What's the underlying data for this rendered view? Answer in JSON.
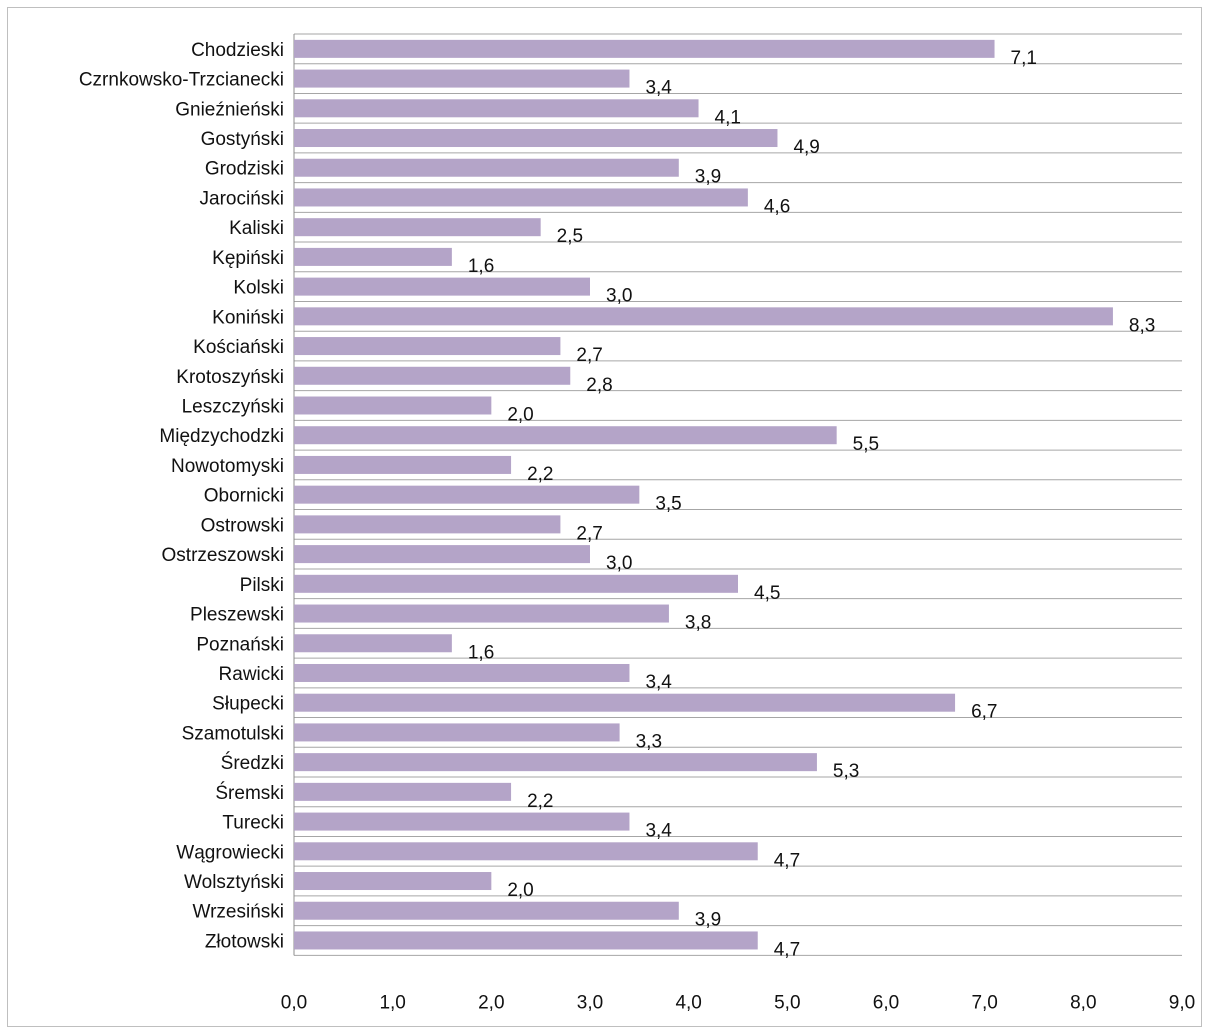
{
  "chart_data": {
    "type": "bar",
    "orientation": "horizontal",
    "categories": [
      "Chodzieski",
      "Czrnkowsko-Trzcianecki",
      "Gnieźnieński",
      "Gostyński",
      "Grodziski",
      "Jarociński",
      "Kaliski",
      "Kępiński",
      "Kolski",
      "Koniński",
      "Kościański",
      "Krotoszyński",
      "Leszczyński",
      "Międzychodzki",
      "Nowotomyski",
      "Obornicki",
      "Ostrowski",
      "Ostrzeszowski",
      "Pilski",
      "Pleszewski",
      "Poznański",
      "Rawicki",
      "Słupecki",
      "Szamotulski",
      "Średzki",
      "Śremski",
      "Turecki",
      "Wągrowiecki",
      "Wolsztyński",
      "Wrzesiński",
      "Złotowski"
    ],
    "values": [
      7.1,
      3.4,
      4.1,
      4.9,
      3.9,
      4.6,
      2.5,
      1.6,
      3.0,
      8.3,
      2.7,
      2.8,
      2.0,
      5.5,
      2.2,
      3.5,
      2.7,
      3.0,
      4.5,
      3.8,
      1.6,
      3.4,
      6.7,
      3.3,
      5.3,
      2.2,
      3.4,
      4.7,
      2.0,
      3.9,
      4.7
    ],
    "value_labels": [
      "7,1",
      "3,4",
      "4,1",
      "4,9",
      "3,9",
      "4,6",
      "2,5",
      "1,6",
      "3,0",
      "8,3",
      "2,7",
      "2,8",
      "2,0",
      "5,5",
      "2,2",
      "3,5",
      "2,7",
      "3,0",
      "4,5",
      "3,8",
      "1,6",
      "3,4",
      "6,7",
      "3,3",
      "5,3",
      "2,2",
      "3,4",
      "4,7",
      "2,0",
      "3,9",
      "4,7"
    ],
    "xticks": [
      "0,0",
      "1,0",
      "2,0",
      "3,0",
      "4,0",
      "5,0",
      "6,0",
      "7,0",
      "8,0",
      "9,0"
    ],
    "xlim": [
      0,
      9
    ],
    "title": "",
    "xlabel": "",
    "ylabel": "",
    "grid": true,
    "legend": "none",
    "bar_color": "#b4a4c8"
  }
}
